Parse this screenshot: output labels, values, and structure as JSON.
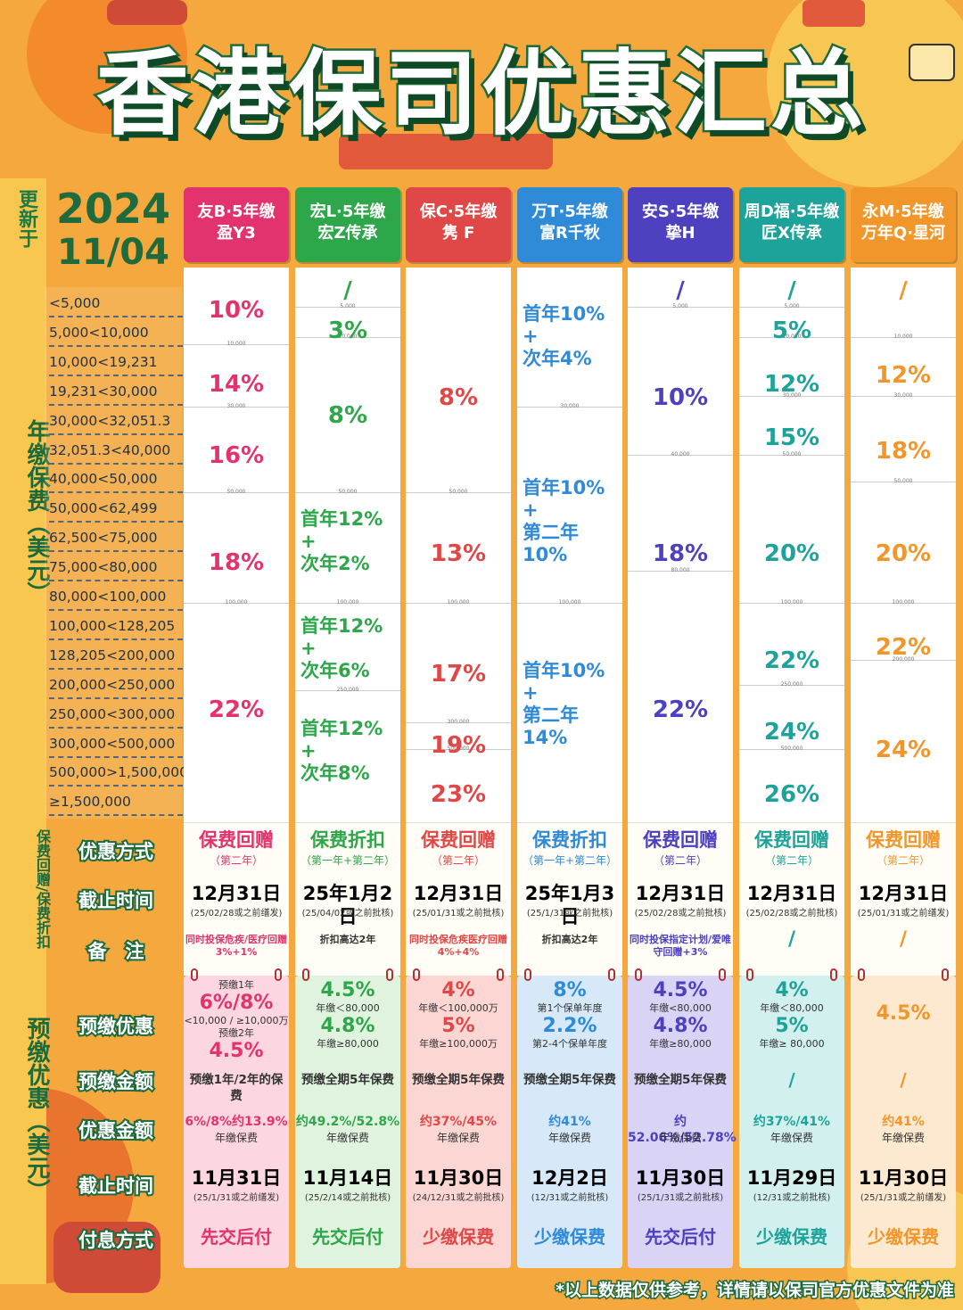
{
  "title": "香港保司优惠汇总",
  "updated_label": "更新于",
  "date": {
    "year": "2024",
    "month_day": "11/04"
  },
  "side_labels": {
    "premium": "年缴保费（美元）",
    "rebate": "保费回赠/保费折扣",
    "prepay": "预缴优惠（美元）"
  },
  "ranges": [
    "<5,000",
    "5,000<10,000",
    "10,000<19,231",
    "19,231<30,000",
    "30,000<32,051.3",
    "32,051.3<40,000",
    "40,000<50,000",
    "50,000<62,499",
    "62,500<75,000",
    "75,000<80,000",
    "80,000<100,000",
    "100,000<128,205",
    "128,205<200,000",
    "200,000<250,000",
    "250,000<300,000",
    "300,000<500,000",
    "500,000>1,500,000",
    "≥1,500,000"
  ],
  "row_labels": {
    "method": "优惠方式",
    "deadline": "截止时间",
    "note": "备　注",
    "prepay": "预缴优惠",
    "prepay_amount": "预缴金额",
    "discount_amount": "优惠金额",
    "prepay_deadline": "截止时间",
    "interest": "付息方式"
  },
  "colors": {
    "c1": "#e3336f",
    "c2": "#2ea64a",
    "c3": "#e04848",
    "c4": "#2f8ad8",
    "c5": "#4d41c0",
    "c6": "#1ea39a",
    "c7": "#f0962a"
  },
  "columns": [
    {
      "head1": "友B·5年缴",
      "head2": "盈Y3",
      "tiers": [
        {
          "text": "10%"
        },
        {
          "text": "14%"
        },
        {
          "text": "16%"
        },
        {
          "text": "18%"
        },
        {
          "text": "22%"
        }
      ],
      "dividers": [
        "10,000",
        "30,000",
        "50,000",
        "100,000"
      ],
      "rebate_type": "保费回赠",
      "rebate_sub": "（第二年）",
      "rebate_date": "12月31日",
      "rebate_date_sub": "(25/02/28或之前缮发)",
      "rebate_note": "同时投保危疾/医疗回赠3%+1%",
      "prepay_lines": [
        "预缴1年",
        "6%/8%",
        "<10,000 / ≥10,000万",
        "预缴2年",
        "4.5%"
      ],
      "prepay_amount": "预缴1年/2年的保费",
      "discount": "6%/8%约13.9%",
      "discount_sub": "年缴保费",
      "prepay_date": "11月31日",
      "prepay_date_sub": "(25/1/31或之前缮发)",
      "interest": "先交后付"
    },
    {
      "head1": "宏L·5年缴",
      "head2": "宏Z传承",
      "tiers": [
        {
          "text": "/"
        },
        {
          "text": "3%"
        },
        {
          "text": "8%"
        },
        {
          "text": "首年12%\n+\n次年2%"
        },
        {
          "text": "首年12%\n+\n次年6%"
        },
        {
          "text": "首年12%\n+\n次年8%"
        }
      ],
      "dividers": [
        "5,000",
        "10,000",
        "50,000",
        "100,000",
        "250,000"
      ],
      "rebate_type": "保费折扣",
      "rebate_sub": "（第一年+第二年）",
      "rebate_date": "25年1月2日",
      "rebate_date_sub": "(25/04/02或之前批核)",
      "rebate_note": "折扣高达2年",
      "prepay_lines": [
        "4.5%",
        "年缴＜80,000",
        "4.8%",
        "年缴≥80,000"
      ],
      "prepay_amount": "预缴全期5年保费",
      "discount": "约49.2%/52.8%",
      "discount_sub": "年缴保费",
      "prepay_date": "11月14日",
      "prepay_date_sub": "(25/2/14或之前批核)",
      "interest": "先交后付"
    },
    {
      "head1": "保C·5年缴",
      "head2": "隽 F",
      "tiers": [
        {
          "text": "8%"
        },
        {
          "text": "13%"
        },
        {
          "text": "17%"
        },
        {
          "text": "19%"
        },
        {
          "text": "23%"
        }
      ],
      "dividers": [
        "50,000",
        "100,000",
        "300,000",
        "500,000"
      ],
      "rebate_type": "保费回赠",
      "rebate_sub": "（第二年）",
      "rebate_date": "12月31日",
      "rebate_date_sub": "(25/01/31或之前批核)",
      "rebate_note": "同时投保危疾医疗回赠4%+4%",
      "prepay_lines": [
        "4%",
        "年缴＜100,000万",
        "5%",
        "年缴≥100,000万"
      ],
      "prepay_amount": "预缴全期5年保费",
      "discount": "约37%/45%",
      "discount_sub": "年缴保费",
      "prepay_date": "11月30日",
      "prepay_date_sub": "(24/12/31或之前批核)",
      "interest": "少缴保费"
    },
    {
      "head1": "万T·5年缴",
      "head2": "富R千秋",
      "tiers": [
        {
          "text": "首年10%\n+\n次年4%"
        },
        {
          "text": "首年10%\n+\n第二年10%"
        },
        {
          "text": "首年10%\n+\n第二年14%"
        }
      ],
      "dividers": [
        "30,000",
        "100,000"
      ],
      "rebate_type": "保费折扣",
      "rebate_sub": "（第一年+第二年）",
      "rebate_date": "25年1月3日",
      "rebate_date_sub": "(25/1/31或之前批核)",
      "rebate_note": "折扣高达2年",
      "prepay_lines": [
        "8%",
        "第1个保单年度",
        "2.2%",
        "第2-4个保单年度"
      ],
      "prepay_amount": "预缴全期5年保费",
      "discount": "约41%",
      "discount_sub": "年缴保费",
      "prepay_date": "12月2日",
      "prepay_date_sub": "(12/31或之前批核)",
      "interest": "少缴保费"
    },
    {
      "head1": "安S·5年缴",
      "head2": "挚H",
      "tiers": [
        {
          "text": "/"
        },
        {
          "text": "10%"
        },
        {
          "text": "18%"
        },
        {
          "text": "22%"
        }
      ],
      "dividers": [
        "5,000",
        "40,000",
        "80,000"
      ],
      "rebate_type": "保费回赠",
      "rebate_sub": "（第二年）",
      "rebate_date": "12月31日",
      "rebate_date_sub": "(25/02/28或之前批核)",
      "rebate_note": "同时投保指定计划/爱唯守回赠+3%",
      "prepay_lines": [
        "4.5%",
        "年缴<80,000",
        "4.8%",
        "年缴≥80,000"
      ],
      "prepay_amount": "预缴全期5年保费",
      "discount": "约52.06%/52.78%",
      "discount_sub": "年缴保费",
      "prepay_date": "11月30日",
      "prepay_date_sub": "(25/1/31或之前批核)",
      "interest": "先交后付"
    },
    {
      "head1": "周D福·5年缴",
      "head2": "匠X传承",
      "tiers": [
        {
          "text": "/"
        },
        {
          "text": "5%"
        },
        {
          "text": "12%"
        },
        {
          "text": "15%"
        },
        {
          "text": "20%"
        },
        {
          "text": "22%"
        },
        {
          "text": "24%"
        },
        {
          "text": "26%"
        }
      ],
      "dividers": [
        "5,000",
        "10,000",
        "30,000",
        "50,000",
        "100,000",
        "250,000",
        "500,000"
      ],
      "rebate_type": "保费回赠",
      "rebate_sub": "（第二年）",
      "rebate_date": "12月31日",
      "rebate_date_sub": "(25/02/28或之前批核)",
      "rebate_note": "/",
      "prepay_lines": [
        "4%",
        "年缴＜80,000",
        "5%",
        "年缴≥ 80,000"
      ],
      "prepay_amount": "/",
      "discount": "约37%/41%",
      "discount_sub": "年缴保费",
      "prepay_date": "11月29日",
      "prepay_date_sub": "(12/31或之前批核)",
      "interest": "少缴保费"
    },
    {
      "head1": "永M·5年缴",
      "head2": "万年Q·星河",
      "tiers": [
        {
          "text": "/"
        },
        {
          "text": "12%"
        },
        {
          "text": "18%"
        },
        {
          "text": "20%"
        },
        {
          "text": "22%"
        },
        {
          "text": "24%"
        }
      ],
      "dividers": [
        "10,000",
        "30,000",
        "50,000",
        "100,000",
        "200,000"
      ],
      "rebate_type": "保费回赠",
      "rebate_sub": "（第二年）",
      "rebate_date": "12月31日",
      "rebate_date_sub": "(25/01/31或之前缮发)",
      "rebate_note": "/",
      "prepay_lines": [
        "4.5%"
      ],
      "prepay_amount": "/",
      "discount": "约41%",
      "discount_sub": "年缴保费",
      "prepay_date": "11月30日",
      "prepay_date_sub": "(25/1/31或之前缮发)",
      "interest": "少缴保费"
    }
  ],
  "disclaimer": "*以上数据仅供参考，详情请以保司官方优惠文件为准"
}
